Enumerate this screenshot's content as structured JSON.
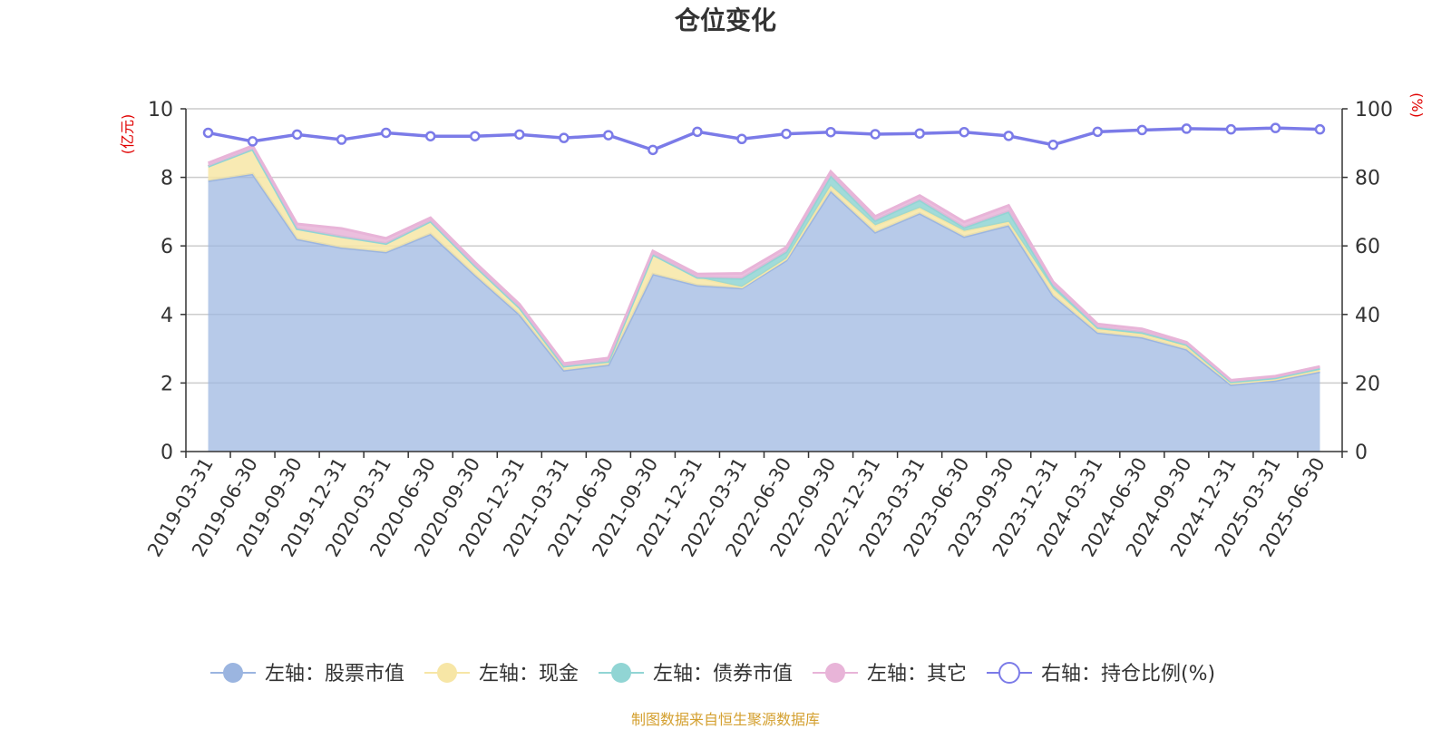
{
  "chart_data": {
    "type": "area",
    "title": "仓位变化",
    "left_axis_unit": "(亿元)",
    "right_axis_unit": "(%)",
    "categories": [
      "2019-03-31",
      "2019-06-30",
      "2019-09-30",
      "2019-12-31",
      "2020-03-31",
      "2020-06-30",
      "2020-09-30",
      "2020-12-31",
      "2021-03-31",
      "2021-06-30",
      "2021-09-30",
      "2021-12-31",
      "2022-03-31",
      "2022-06-30",
      "2022-09-30",
      "2022-12-31",
      "2023-03-31",
      "2023-06-30",
      "2023-09-30",
      "2023-12-31",
      "2024-03-31",
      "2024-06-30",
      "2024-09-30",
      "2024-12-31",
      "2025-03-31",
      "2025-06-30"
    ],
    "ylim_left": [
      0,
      10
    ],
    "yticks_left": [
      "0",
      "2",
      "4",
      "6",
      "8",
      "10"
    ],
    "ylim_right": [
      0,
      100
    ],
    "yticks_right": [
      "0",
      "20",
      "40",
      "60",
      "80",
      "100"
    ],
    "grid": true,
    "legend_position": "bottom",
    "series": [
      {
        "name": "左轴：股票市值",
        "axis": "left",
        "type": "stacked-area",
        "color": "#9bb5e0",
        "values": [
          7.9,
          8.1,
          6.2,
          5.95,
          5.82,
          6.35,
          5.15,
          4.0,
          2.37,
          2.53,
          5.18,
          4.85,
          4.77,
          5.58,
          7.6,
          6.4,
          6.95,
          6.27,
          6.6,
          4.55,
          3.47,
          3.33,
          2.98,
          1.95,
          2.07,
          2.33
        ]
      },
      {
        "name": "左轴：现金",
        "axis": "left",
        "type": "stacked-area",
        "color": "#f7e6a6",
        "values": [
          0.42,
          0.72,
          0.3,
          0.32,
          0.25,
          0.37,
          0.27,
          0.2,
          0.12,
          0.1,
          0.57,
          0.23,
          0.03,
          0.05,
          0.15,
          0.2,
          0.16,
          0.17,
          0.1,
          0.2,
          0.1,
          0.1,
          0.1,
          0.05,
          0.05,
          0.05
        ]
      },
      {
        "name": "左轴：债券市值",
        "axis": "left",
        "type": "stacked-area",
        "color": "#91d5d4",
        "values": [
          0.0,
          0.0,
          0.0,
          0.0,
          0.0,
          0.0,
          0.0,
          0.0,
          0.0,
          0.0,
          0.0,
          0.0,
          0.25,
          0.2,
          0.3,
          0.14,
          0.23,
          0.1,
          0.3,
          0.1,
          0.05,
          0.05,
          0.04,
          0.03,
          0.03,
          0.05
        ]
      },
      {
        "name": "左轴：其它",
        "axis": "left",
        "type": "stacked-area",
        "color": "#e8b4d8",
        "values": [
          0.1,
          0.1,
          0.14,
          0.24,
          0.15,
          0.1,
          0.1,
          0.1,
          0.08,
          0.1,
          0.1,
          0.1,
          0.15,
          0.13,
          0.12,
          0.12,
          0.13,
          0.16,
          0.18,
          0.1,
          0.1,
          0.1,
          0.07,
          0.05,
          0.05,
          0.05
        ]
      },
      {
        "name": "右轴：持仓比例(%)",
        "axis": "right",
        "type": "line",
        "color": "#7b7be8",
        "values": [
          93,
          90.5,
          92.5,
          91,
          93,
          92,
          92,
          92.5,
          91.5,
          92.3,
          88,
          93.3,
          91.2,
          92.7,
          93.2,
          92.6,
          92.8,
          93.2,
          92.1,
          89.5,
          93.3,
          93.8,
          94.2,
          94,
          94.4,
          94
        ]
      }
    ]
  },
  "source_note": "制图数据来自恒生聚源数据库"
}
